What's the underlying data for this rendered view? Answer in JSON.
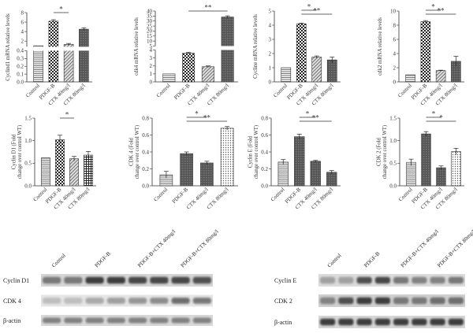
{
  "chart_data": [
    {
      "type": "bar",
      "ylabel": "Cyclind1 mRNA relative levels",
      "categories": [
        "Control",
        "PDGF-B",
        "CTX 40mg/l",
        "CTX 80mg/l"
      ],
      "values": [
        1,
        6.2,
        1.3,
        4.5
      ],
      "errors": [
        0,
        0.3,
        0.2,
        0.3
      ],
      "fills": [
        "lines",
        "check",
        "hatch",
        "dark"
      ],
      "axis_break": true,
      "ylim_lower": [
        0,
        0.4
      ],
      "ylim_upper": [
        0.8,
        8
      ],
      "yticks_lower": [
        "0.0",
        "0.1",
        "0.2",
        "0.3",
        "0.4"
      ],
      "yticks_upper": [
        "2",
        "4",
        "6",
        "8"
      ],
      "significance": [
        {
          "from": 1,
          "to": 2,
          "label": "*"
        }
      ]
    },
    {
      "type": "bar",
      "ylabel": "cdk4 mRNA relative levels",
      "categories": [
        "Control",
        "PDGF-B",
        "CTX 40mg/l",
        "CTX 80mg/l"
      ],
      "values": [
        1,
        3.6,
        1.9,
        34
      ],
      "errors": [
        0,
        0.1,
        0.1,
        1.2
      ],
      "fills": [
        "lines",
        "check",
        "hatch",
        "dark"
      ],
      "axis_break": true,
      "ylim_lower": [
        0,
        4
      ],
      "ylim_upper": [
        5,
        40
      ],
      "yticks_lower": [
        "0",
        "1",
        "2",
        "3",
        "4"
      ],
      "yticks_upper": [
        "5",
        "10",
        "15",
        "20",
        "25",
        "30",
        "35",
        "40"
      ],
      "significance": [
        {
          "from": 1,
          "to": 3,
          "label": "**"
        }
      ]
    },
    {
      "type": "bar",
      "ylabel": "Cycline mRNA relative levels",
      "categories": [
        "Control",
        "PDGF-B",
        "CTX 40mg/l",
        "CTX 80mg/l"
      ],
      "values": [
        1,
        4.1,
        1.75,
        1.55
      ],
      "errors": [
        0,
        0.05,
        0.08,
        0.2
      ],
      "fills": [
        "lines",
        "check",
        "hatch",
        "dark"
      ],
      "ylim": [
        0,
        5
      ],
      "yticks": [
        "0",
        "1",
        "2",
        "3",
        "4",
        "5"
      ],
      "significance": [
        {
          "from": 1,
          "to": 2,
          "label": "*"
        },
        {
          "from": 1,
          "to": 3,
          "label": "**"
        }
      ]
    },
    {
      "type": "bar",
      "ylabel": "cdk2 mRNA relative levels",
      "categories": [
        "Control",
        "PDGF-B",
        "CTX 40mg/l",
        "CTX 80mg/l"
      ],
      "values": [
        1,
        8.5,
        1.6,
        2.9
      ],
      "errors": [
        0,
        0.15,
        0.05,
        0.7
      ],
      "fills": [
        "lines",
        "check",
        "hatch",
        "dark"
      ],
      "ylim": [
        0,
        10
      ],
      "yticks": [
        "0",
        "2",
        "4",
        "6",
        "8",
        "10"
      ],
      "significance": [
        {
          "from": 1,
          "to": 2,
          "label": "*"
        },
        {
          "from": 1,
          "to": 3,
          "label": "**"
        }
      ]
    },
    {
      "type": "bar",
      "ylabel": "Cyclin D1 (Fold change over control WT)",
      "categories": [
        "Control",
        "PDGF-B",
        "CTX 40mg/l",
        "CTX 80mg/l"
      ],
      "values": [
        0.62,
        1.02,
        0.6,
        0.68
      ],
      "errors": [
        0,
        0.1,
        0.05,
        0.08
      ],
      "fills": [
        "lines",
        "check",
        "hatch",
        "grid"
      ],
      "ylim": [
        0,
        1.5
      ],
      "yticks": [
        "0.0",
        "0.5",
        "1.0",
        "1.5"
      ],
      "significance": [
        {
          "from": 1,
          "to": 2,
          "label": "*"
        }
      ]
    },
    {
      "type": "bar",
      "ylabel": "CDK 4 (Fold change over control WT)",
      "categories": [
        "Control",
        "PDGF-B",
        "CTX 40mg/l",
        "CTX 80mg/l"
      ],
      "values": [
        0.13,
        0.38,
        0.27,
        0.68
      ],
      "errors": [
        0.04,
        0.02,
        0.02,
        0.02
      ],
      "fills": [
        "lines",
        "dark",
        "dark",
        "dots"
      ],
      "ylim": [
        0,
        0.8
      ],
      "yticks": [
        "0.0",
        "0.2",
        "0.4",
        "0.6",
        "0.8"
      ],
      "significance": [
        {
          "from": 1,
          "to": 2,
          "label": "*"
        },
        {
          "from": 1,
          "to": 3,
          "label": "**"
        }
      ]
    },
    {
      "type": "bar",
      "ylabel": "Cyclin E (Fold change over control WT)",
      "categories": [
        "Control",
        "PDGF-B",
        "CTX 40mg/l",
        "CTX 80mg/l"
      ],
      "values": [
        0.28,
        0.58,
        0.29,
        0.16
      ],
      "errors": [
        0.03,
        0.03,
        0.01,
        0.02
      ],
      "fills": [
        "lines",
        "dark",
        "dark",
        "dark"
      ],
      "ylim": [
        0,
        0.8
      ],
      "yticks": [
        "0.0",
        "0.2",
        "0.4",
        "0.6",
        "0.8"
      ],
      "significance": [
        {
          "from": 1,
          "to": 2,
          "label": "*"
        },
        {
          "from": 1,
          "to": 3,
          "label": "**"
        }
      ]
    },
    {
      "type": "bar",
      "ylabel": "CDK 2 (Fold change over control WT)",
      "categories": [
        "Control",
        "PDGF-B",
        "CTX 40mg/l",
        "CTX 80mg/l"
      ],
      "values": [
        0.52,
        1.15,
        0.4,
        0.76
      ],
      "errors": [
        0.07,
        0.05,
        0.04,
        0.07
      ],
      "fills": [
        "lines",
        "dark",
        "dark",
        "dots"
      ],
      "ylim": [
        0,
        1.5
      ],
      "yticks": [
        "0.0",
        "0.5",
        "1.0",
        "1.5"
      ],
      "significance": [
        {
          "from": 1,
          "to": 2,
          "label": "*"
        },
        {
          "from": 1,
          "to": 3,
          "label": "*"
        }
      ]
    }
  ],
  "blots": [
    {
      "lanes": [
        "Control",
        "PDGF-B",
        "PDGF-B+CTX 40mg/l",
        "PDGF-B+CTX 80mg/l"
      ],
      "bands": [
        {
          "label": "Cyclin D1",
          "intensities": [
            0.55,
            0.55,
            0.85,
            0.85,
            0.8,
            0.8,
            0.8,
            0.75
          ]
        },
        {
          "label": "CDK 4",
          "intensities": [
            0.2,
            0.2,
            0.3,
            0.35,
            0.4,
            0.45,
            0.6,
            0.55
          ]
        },
        {
          "label": "β-actin",
          "intensities": [
            0.5,
            0.5,
            0.5,
            0.5,
            0.5,
            0.5,
            0.5,
            0.5
          ]
        }
      ]
    },
    {
      "lanes": [
        "Control",
        "PDGF-B",
        "PDGF-B+CTX 40mg/l",
        "PDGF-B+CTX 80mg/l"
      ],
      "bands": [
        {
          "label": "Cyclin E",
          "intensities": [
            0.35,
            0.35,
            0.75,
            0.8,
            0.55,
            0.5,
            0.5,
            0.55
          ]
        },
        {
          "label": "CDK 2",
          "intensities": [
            0.5,
            0.75,
            0.85,
            0.85,
            0.55,
            0.55,
            0.6,
            0.6
          ]
        },
        {
          "label": "β-actin",
          "intensities": [
            0.85,
            0.85,
            0.85,
            0.85,
            0.85,
            0.85,
            0.85,
            0.85
          ]
        }
      ]
    }
  ]
}
